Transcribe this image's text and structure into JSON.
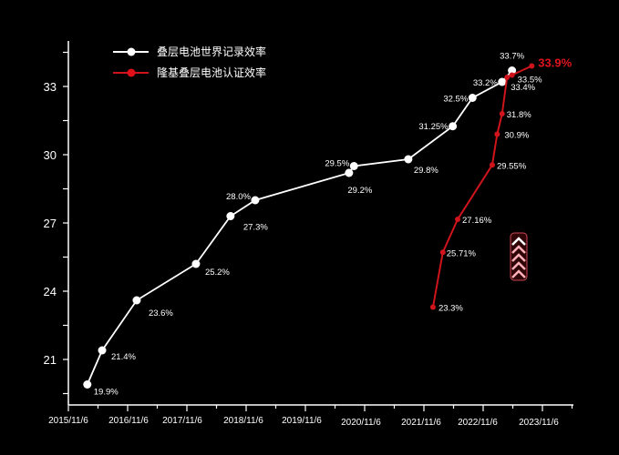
{
  "chart_data": {
    "type": "line",
    "title": "",
    "xlabel": "",
    "ylabel": "",
    "ylim": [
      19,
      35
    ],
    "xlim": [
      "2015-11-06",
      "2024-06"
    ],
    "grid": false,
    "legend_position": "top-left",
    "y_ticks": [
      "21",
      "24",
      "27",
      "30",
      "33"
    ],
    "x_tick_labels": [
      "2015/11/6",
      "2016/11/6",
      "2017/11/6",
      "2018/11/6",
      "2019/11/6",
      "2020/11/6",
      "2021/11/6",
      "2022/11/6",
      "2023/11/6"
    ],
    "series": [
      {
        "name": "叠层电池世界记录效率",
        "color": "#ffffff",
        "x": [
          "2016-03",
          "2016-06",
          "2017-01",
          "2018-01",
          "2018-08",
          "2019-01",
          "2020-08",
          "2020-09",
          "2021-08",
          "2022-05",
          "2022-09",
          "2023-03",
          "2023-05"
        ],
        "values": [
          19.9,
          21.4,
          23.6,
          25.2,
          27.3,
          28.0,
          29.2,
          29.5,
          29.8,
          31.25,
          32.5,
          33.2,
          33.7
        ],
        "labels": [
          "19.9%",
          "21.4%",
          "23.6%",
          "25.2%",
          "27.3%",
          "28.0%",
          "29.2%",
          "29.5%",
          "29.8%",
          "31.25%",
          "32.5%",
          "33.2%",
          "33.7%"
        ]
      },
      {
        "name": "隆基叠层电池认证效率",
        "color": "#d0141c",
        "x": [
          "2022-01",
          "2022-03",
          "2022-06",
          "2023-01",
          "2023-02",
          "2023-03",
          "2023-04",
          "2023-05",
          "2023-09"
        ],
        "values": [
          23.3,
          25.71,
          27.16,
          29.55,
          30.9,
          31.8,
          33.4,
          33.5,
          33.9
        ],
        "labels": [
          "23.3%",
          "25.71%",
          "27.16%",
          "29.55%",
          "30.9%",
          "31.8%",
          "33.4%",
          "33.5%",
          "33.9%"
        ]
      }
    ]
  },
  "decoration": {
    "icon": "chevron-up-stack-icon",
    "color": "#ff5a6a"
  }
}
